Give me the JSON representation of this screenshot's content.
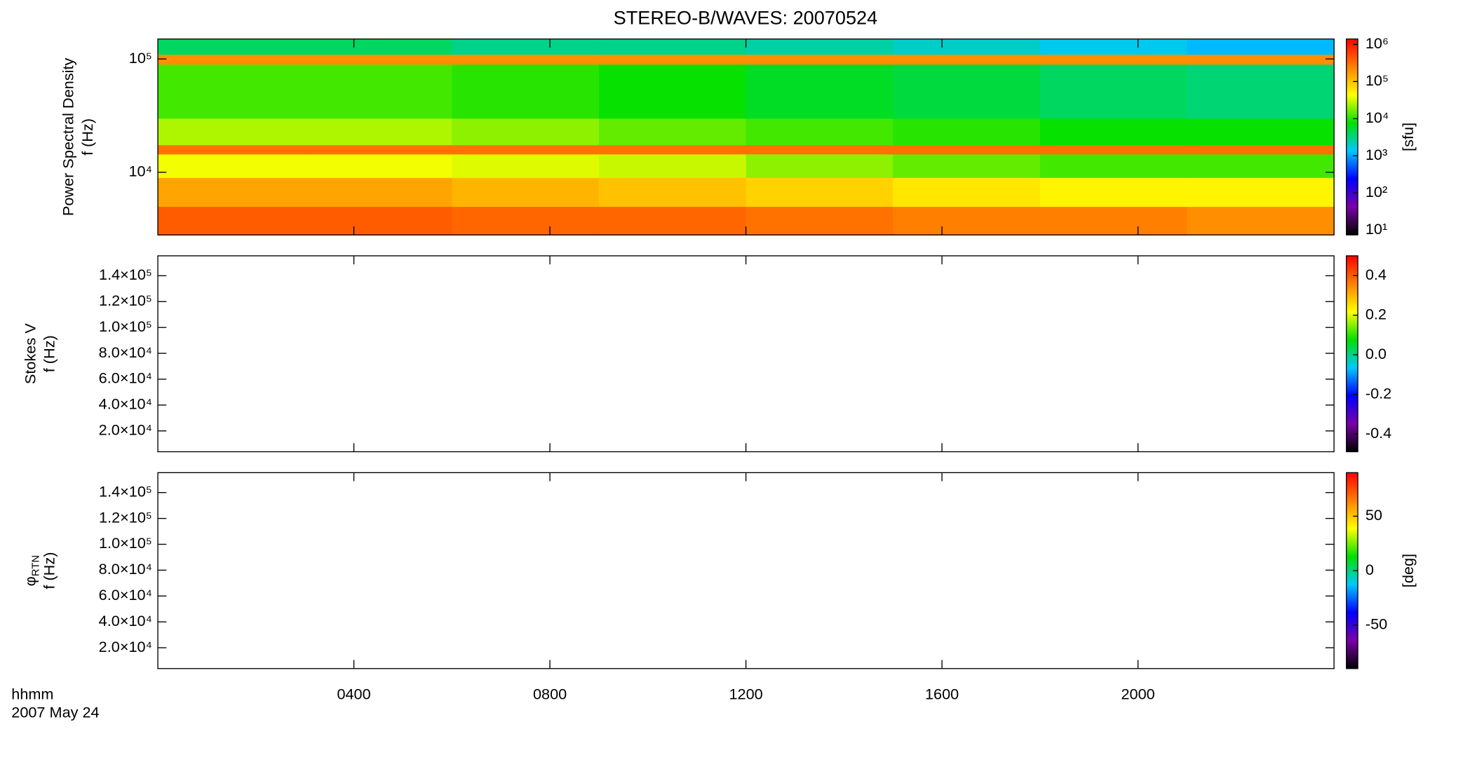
{
  "chart_data": [
    {
      "type": "heatmap",
      "title": "STEREO-B/WAVES: 20070524",
      "ylabel": [
        "Power Spectral Density",
        "f (Hz)"
      ],
      "ylog": true,
      "ylim": [
        2800,
        150000
      ],
      "yticks": [
        {
          "value": 10000,
          "label": "10⁴"
        },
        {
          "value": 100000,
          "label": "10⁵"
        }
      ],
      "xlim": [
        0,
        24
      ],
      "time_bins": [
        0,
        3,
        6,
        9,
        12,
        15,
        18,
        21,
        24
      ],
      "freq_bins": [
        2800,
        5000,
        9000,
        14500,
        17500,
        30000,
        90000,
        110000,
        150000
      ],
      "z": [
        [
          400000,
          400000,
          350000,
          350000,
          300000,
          250000,
          250000,
          200000
        ],
        [
          150000,
          150000,
          120000,
          100000,
          80000,
          60000,
          50000,
          50000
        ],
        [
          40000,
          40000,
          35000,
          30000,
          20000,
          15000,
          12000,
          12000
        ],
        [
          300000,
          300000,
          300000,
          300000,
          300000,
          300000,
          300000,
          300000
        ],
        [
          25000,
          25000,
          20000,
          15000,
          12000,
          10000,
          8000,
          8000
        ],
        [
          12000,
          12000,
          10000,
          8000,
          6000,
          5000,
          4000,
          3500
        ],
        [
          200000,
          200000,
          200000,
          200000,
          200000,
          200000,
          200000,
          200000
        ],
        [
          4000,
          4000,
          3000,
          3000,
          2500,
          2000,
          1500,
          1200
        ]
      ],
      "clog": true,
      "clim": [
        7.4,
        1400000
      ],
      "cticks": [
        {
          "value": 10,
          "label": "10¹"
        },
        {
          "value": 100,
          "label": "10²"
        },
        {
          "value": 1000,
          "label": "10³"
        },
        {
          "value": 10000,
          "label": "10⁴"
        },
        {
          "value": 100000,
          "label": "10⁵"
        },
        {
          "value": 1000000,
          "label": "10⁶"
        }
      ],
      "clabel": "[sfu]",
      "colormap": [
        "#000000",
        "#7a00a8",
        "#0000ff",
        "#00c8ff",
        "#00e000",
        "#ffff00",
        "#ff8000",
        "#ff0000"
      ]
    },
    {
      "type": "heatmap",
      "ylabel": [
        "Stokes V",
        "f (Hz)"
      ],
      "ylog": false,
      "ylim": [
        3900,
        155400
      ],
      "yticks": [
        {
          "value": 20000,
          "label": "2.0×10⁴"
        },
        {
          "value": 40000,
          "label": "4.0×10⁴"
        },
        {
          "value": 60000,
          "label": "6.0×10⁴"
        },
        {
          "value": 80000,
          "label": "8.0×10⁴"
        },
        {
          "value": 100000,
          "label": "1.0×10⁵"
        },
        {
          "value": 120000,
          "label": "1.2×10⁵"
        },
        {
          "value": 140000,
          "label": "1.4×10⁵"
        }
      ],
      "xlim": [
        0,
        24
      ],
      "clog": false,
      "clim": [
        -0.49,
        0.5
      ],
      "cticks": [
        -0.4,
        -0.2,
        {
          "value": 0,
          "label": "0.0"
        },
        0.2,
        0.4
      ],
      "colormap": [
        "#000000",
        "#7a00a8",
        "#0000ff",
        "#00c8ff",
        "#00e000",
        "#ffff00",
        "#ff8000",
        "#ff0000"
      ]
    },
    {
      "type": "heatmap",
      "ylabel": [
        "φ",
        "f (Hz)"
      ],
      "ylabel_sub": "RTN",
      "ylog": false,
      "ylim": [
        3900,
        155400
      ],
      "yticks": [
        {
          "value": 20000,
          "label": "2.0×10⁴"
        },
        {
          "value": 40000,
          "label": "4.0×10⁴"
        },
        {
          "value": 60000,
          "label": "6.0×10⁴"
        },
        {
          "value": 80000,
          "label": "8.0×10⁴"
        },
        {
          "value": 100000,
          "label": "1.0×10⁵"
        },
        {
          "value": 120000,
          "label": "1.2×10⁵"
        },
        {
          "value": 140000,
          "label": "1.4×10⁵"
        }
      ],
      "xlim": [
        0,
        24
      ],
      "xticks": [
        {
          "value": 4,
          "label": "0400"
        },
        {
          "value": 8,
          "label": "0800"
        },
        {
          "value": 12,
          "label": "1200"
        },
        {
          "value": 16,
          "label": "1600"
        },
        {
          "value": 20,
          "label": "2000"
        }
      ],
      "xlabel": "hhmm",
      "date_label": "2007 May 24",
      "clog": false,
      "clim": [
        -90,
        90
      ],
      "cticks": [
        -50,
        0,
        50
      ],
      "clabel": "[deg]",
      "colormap": [
        "#000000",
        "#7a00a8",
        "#0000ff",
        "#00c8ff",
        "#00e000",
        "#ffff00",
        "#ff8000",
        "#ff0000"
      ]
    }
  ]
}
